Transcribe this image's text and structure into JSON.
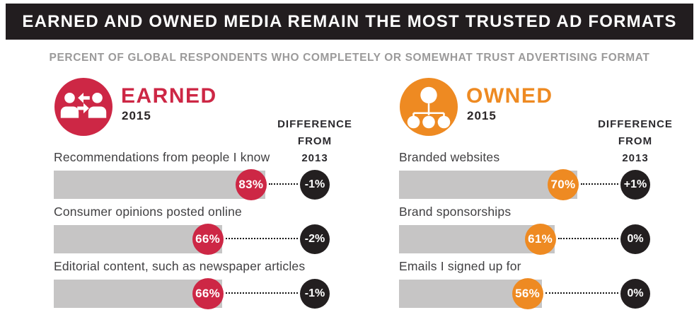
{
  "header": {
    "title": "EARNED AND OWNED MEDIA REMAIN THE MOST TRUSTED AD FORMATS",
    "bg_color": "#221d1f",
    "text_color": "#ffffff"
  },
  "subtitle": "PERCENT OF GLOBAL RESPONDENTS WHO COMPLETELY OR SOMEWHAT TRUST ADVERTISING FORMAT",
  "chart_data": {
    "type": "bar",
    "unit": "%",
    "colors": {
      "earned": "#cd2745",
      "owned": "#ee8a22",
      "bar_track": "#c6c5c5",
      "diff_circle": "#231f20",
      "subtitle_gray": "#9b9a9a"
    },
    "groups": [
      {
        "name": "EARNED",
        "year": "2015",
        "color": "#cd2745",
        "icon": "people-exchange-icon",
        "diff_header": [
          "DIFFERENCE",
          "FROM",
          "2013"
        ],
        "items": [
          {
            "label": "Recommendations from people I know",
            "value": 83,
            "value_label": "83%",
            "diff": "-1%"
          },
          {
            "label": "Consumer opinions posted online",
            "value": 66,
            "value_label": "66%",
            "diff": "-2%"
          },
          {
            "label": "Editorial content, such as newspaper articles",
            "value": 66,
            "value_label": "66%",
            "diff": "-1%"
          }
        ]
      },
      {
        "name": "OWNED",
        "year": "2015",
        "color": "#ee8a22",
        "icon": "org-chart-icon",
        "diff_header": [
          "DIFFERENCE",
          "FROM",
          "2013"
        ],
        "items": [
          {
            "label": "Branded websites",
            "value": 70,
            "value_label": "70%",
            "diff": "+1%"
          },
          {
            "label": "Brand sponsorships",
            "value": 61,
            "value_label": "61%",
            "diff": "0%"
          },
          {
            "label": "Emails I signed up for",
            "value": 56,
            "value_label": "56%",
            "diff": "0%"
          }
        ]
      }
    ],
    "value_axis_range": [
      0,
      100
    ]
  }
}
